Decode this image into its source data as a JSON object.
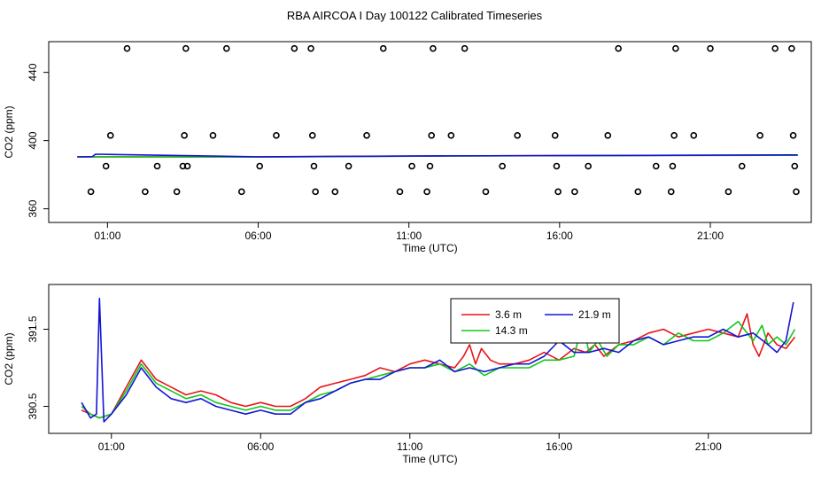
{
  "title": "RBA AIRCOA I  Day 100122  Calibrated Timeseries",
  "colors": {
    "red": "#e8141a",
    "green": "#10c818",
    "blue": "#1414d8",
    "axis": "#000000"
  },
  "chart_data": [
    {
      "type": "line",
      "xlabel": "Time (UTC)",
      "ylabel": "CO2 (ppm)",
      "xlim": [
        -0.95,
        24.35
      ],
      "ylim": [
        352,
        458
      ],
      "xticks": [
        1,
        6,
        11,
        16,
        21
      ],
      "xtick_labels": [
        "01:00",
        "06:00",
        "11:00",
        "16:00",
        "21:00"
      ],
      "yticks": [
        360,
        400,
        440
      ],
      "ytick_labels": [
        "360",
        "400",
        "440"
      ],
      "grid": false,
      "legend": null,
      "series": [
        {
          "color": "#e8141a",
          "style": "line",
          "x": [
            0,
            6,
            12,
            18,
            23.9
          ],
          "y": [
            390.5,
            390.4,
            391.0,
            391.3,
            391.4
          ]
        },
        {
          "color": "#10c818",
          "style": "line",
          "x": [
            0,
            6,
            12,
            18,
            23.9
          ],
          "y": [
            390.5,
            390.4,
            390.9,
            391.3,
            391.4
          ]
        },
        {
          "color": "#1414d8",
          "style": "line",
          "x": [
            0,
            0.5,
            0.6,
            6,
            12,
            18,
            23.9
          ],
          "y": [
            390.4,
            390.6,
            392.0,
            390.5,
            391.0,
            391.3,
            391.6
          ]
        },
        {
          "style": "points",
          "x": [
            0.45,
            0.95,
            1.1,
            1.65,
            2.25,
            2.65,
            3.3,
            3.5,
            3.55,
            3.6,
            3.65,
            4.5,
            4.95,
            5.45,
            6.05,
            6.6,
            7.2,
            7.75,
            7.8,
            7.85,
            7.9,
            8.55,
            9.0,
            9.6,
            10.15,
            10.7,
            11.1,
            11.6,
            11.7,
            11.75,
            11.8,
            12.4,
            12.85,
            13.55,
            14.1,
            14.6,
            15.85,
            15.9,
            15.95,
            16.5,
            16.95,
            17.6,
            17.95,
            18.6,
            19.2,
            19.7,
            19.75,
            19.8,
            19.85,
            20.45,
            21.0,
            21.6,
            22.05,
            22.65,
            23.15,
            23.7,
            23.75,
            23.8,
            23.85
          ],
          "y": [
            370,
            385,
            403,
            454,
            370,
            385,
            370,
            385,
            403,
            454,
            385,
            403,
            454,
            370,
            385,
            403,
            454,
            454,
            403,
            385,
            370,
            370,
            385,
            403,
            454,
            370,
            385,
            370,
            385,
            403,
            454,
            403,
            454,
            370,
            385,
            403,
            403,
            385,
            370,
            370,
            385,
            403,
            454,
            370,
            385,
            370,
            385,
            403,
            454,
            403,
            454,
            370,
            385,
            403,
            454,
            454,
            403,
            385,
            370
          ]
        }
      ]
    },
    {
      "type": "line",
      "xlabel": "Time (UTC)",
      "ylabel": "CO2 (ppm)",
      "xlim": [
        -1.1,
        24.45
      ],
      "ylim": [
        390.15,
        392.08
      ],
      "xticks": [
        1,
        6,
        11,
        16,
        21
      ],
      "xtick_labels": [
        "01:00",
        "06:00",
        "11:00",
        "16:00",
        "21:00"
      ],
      "yticks": [
        390.5,
        391.5
      ],
      "ytick_labels": [
        "390.5",
        "391.5"
      ],
      "grid": false,
      "legend": "top-center",
      "series": [
        {
          "name": "3.6 m",
          "color": "#e8141a",
          "x": [
            0,
            0.3,
            0.6,
            1,
            1.5,
            2,
            2.5,
            3,
            3.5,
            4,
            4.5,
            5,
            5.5,
            6,
            6.5,
            7,
            7.5,
            8,
            8.5,
            9,
            9.5,
            10,
            10.5,
            11,
            11.5,
            12,
            12.5,
            12.8,
            13,
            13.2,
            13.4,
            13.7,
            14,
            14.5,
            15,
            15.5,
            16,
            16.5,
            16.9,
            17.2,
            17.5,
            18,
            18.5,
            19,
            19.5,
            20,
            20.5,
            21,
            21.5,
            22,
            22.3,
            22.5,
            22.7,
            23,
            23.3,
            23.6,
            23.9
          ],
          "y": [
            390.45,
            390.4,
            390.35,
            390.4,
            390.75,
            391.1,
            390.85,
            390.75,
            390.65,
            390.7,
            390.65,
            390.55,
            390.5,
            390.55,
            390.5,
            390.5,
            390.6,
            390.75,
            390.8,
            390.85,
            390.9,
            391.0,
            390.95,
            391.05,
            391.1,
            391.05,
            391.0,
            391.15,
            391.3,
            391.05,
            391.25,
            391.1,
            391.05,
            391.05,
            391.1,
            391.2,
            391.1,
            391.25,
            391.2,
            391.3,
            391.15,
            391.3,
            391.35,
            391.45,
            391.5,
            391.4,
            391.45,
            391.5,
            391.45,
            391.4,
            391.7,
            391.3,
            391.15,
            391.45,
            391.3,
            391.25,
            391.4
          ]
        },
        {
          "name": "14.3 m",
          "color": "#10c818",
          "x": [
            0,
            0.3,
            0.6,
            1,
            1.5,
            2,
            2.5,
            3,
            3.5,
            4,
            4.5,
            5,
            5.5,
            6,
            6.5,
            7,
            7.5,
            8,
            8.5,
            9,
            9.5,
            10,
            10.5,
            11,
            11.5,
            12,
            12.5,
            13,
            13.5,
            14,
            14.5,
            15,
            15.5,
            16,
            16.5,
            16.8,
            17,
            17.3,
            17.6,
            18,
            18.5,
            19,
            19.5,
            20,
            20.5,
            21,
            21.5,
            22,
            22.5,
            22.8,
            23,
            23.3,
            23.6,
            23.9
          ],
          "y": [
            390.5,
            390.4,
            390.35,
            390.4,
            390.7,
            391.05,
            390.8,
            390.7,
            390.6,
            390.65,
            390.55,
            390.5,
            390.45,
            390.5,
            390.45,
            390.45,
            390.55,
            390.65,
            390.7,
            390.8,
            390.85,
            390.9,
            390.95,
            391.0,
            391.0,
            391.05,
            390.95,
            391.05,
            390.9,
            391.0,
            391.0,
            391.0,
            391.1,
            391.1,
            391.15,
            391.6,
            391.2,
            391.35,
            391.15,
            391.3,
            391.3,
            391.4,
            391.3,
            391.45,
            391.35,
            391.35,
            391.45,
            391.6,
            391.35,
            391.55,
            391.3,
            391.4,
            391.3,
            391.5
          ]
        },
        {
          "name": "21.9 m",
          "color": "#1414d8",
          "x": [
            0,
            0.3,
            0.5,
            0.6,
            0.75,
            1,
            1.5,
            2,
            2.5,
            3,
            3.5,
            4,
            4.5,
            5,
            5.5,
            6,
            6.5,
            7,
            7.5,
            8,
            8.5,
            9,
            9.5,
            10,
            10.5,
            11,
            11.5,
            12,
            12.5,
            13,
            13.5,
            14,
            14.5,
            15,
            15.5,
            16,
            16.5,
            17,
            17.5,
            18,
            18.5,
            19,
            19.5,
            20,
            20.5,
            21,
            21.5,
            22,
            22.5,
            23,
            23.3,
            23.6,
            23.85
          ],
          "y": [
            390.55,
            390.35,
            390.4,
            391.9,
            390.3,
            390.4,
            390.65,
            391.0,
            390.75,
            390.6,
            390.55,
            390.6,
            390.5,
            390.45,
            390.4,
            390.45,
            390.4,
            390.4,
            390.55,
            390.6,
            390.7,
            390.8,
            390.85,
            390.85,
            390.95,
            391.0,
            391.0,
            391.1,
            390.95,
            391.0,
            390.95,
            391.0,
            391.05,
            391.05,
            391.15,
            391.35,
            391.2,
            391.2,
            391.25,
            391.2,
            391.35,
            391.4,
            391.3,
            391.35,
            391.4,
            391.4,
            391.5,
            391.4,
            391.45,
            391.3,
            391.2,
            391.35,
            391.85
          ]
        }
      ]
    }
  ]
}
